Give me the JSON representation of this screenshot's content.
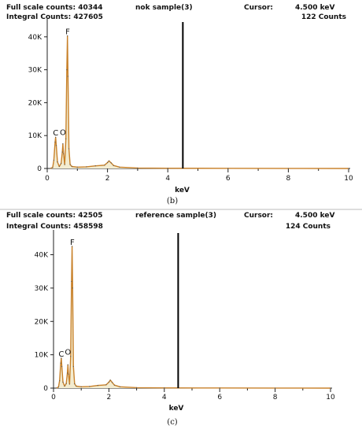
{
  "chart_data": [
    {
      "type": "line",
      "panel_label": "(b)",
      "header": {
        "full_scale": "Full scale counts: 40344",
        "sample": "nok sample(3)",
        "cursor_label": "Cursor:",
        "cursor_value": "4.500 keV",
        "integral": "Integral Counts: 427605",
        "cursor_counts": "122 Counts"
      },
      "xlabel": "keV",
      "xlim": [
        0,
        10
      ],
      "ylim": [
        0,
        44500
      ],
      "x_ticks": [
        0,
        2,
        4,
        6,
        8,
        10
      ],
      "y_ticks": [
        {
          "value": 0,
          "label": "0"
        },
        {
          "value": 10000,
          "label": "10K"
        },
        {
          "value": 20000,
          "label": "20K"
        },
        {
          "value": 30000,
          "label": "30K"
        },
        {
          "value": 40000,
          "label": "40K"
        }
      ],
      "cursor_x": 4.5,
      "peak_labels": [
        {
          "text": "C",
          "x": 0.28,
          "y": 10000
        },
        {
          "text": "O",
          "x": 0.52,
          "y": 10200
        },
        {
          "text": "F",
          "x": 0.68,
          "y": 40800
        }
      ],
      "spectrum_color": "#c8812a",
      "series": [
        {
          "x": [
            0.1,
            0.18,
            0.22,
            0.26,
            0.28,
            0.3,
            0.34,
            0.4,
            0.46,
            0.5,
            0.52,
            0.54,
            0.58,
            0.62,
            0.65,
            0.67,
            0.69,
            0.72,
            0.76,
            0.82,
            1.0,
            1.3,
            1.6,
            1.9,
            2.0,
            2.05,
            2.12,
            2.2,
            2.4,
            3.0,
            4.0,
            6.0,
            8.0,
            10.0
          ],
          "y": [
            0,
            300,
            2500,
            8000,
            9500,
            7000,
            2000,
            600,
            1500,
            5000,
            7500,
            4500,
            1200,
            9000,
            30000,
            40300,
            28000,
            6000,
            1200,
            600,
            400,
            500,
            800,
            1000,
            1800,
            2300,
            1700,
            900,
            400,
            150,
            80,
            40,
            20,
            10
          ]
        }
      ]
    },
    {
      "type": "line",
      "panel_label": "(c)",
      "header": {
        "full_scale": "Full scale counts: 42505",
        "sample": "reference sample(3)",
        "cursor_label": "Cursor:",
        "cursor_value": "4.500 keV",
        "integral": "Integral Counts: 458598",
        "cursor_counts": "124 Counts"
      },
      "xlabel": "keV",
      "xlim": [
        0,
        10
      ],
      "ylim": [
        0,
        46500
      ],
      "x_ticks": [
        0,
        2,
        4,
        6,
        8,
        10
      ],
      "y_ticks": [
        {
          "value": 0,
          "label": "0"
        },
        {
          "value": 10000,
          "label": "10K"
        },
        {
          "value": 20000,
          "label": "20K"
        },
        {
          "value": 30000,
          "label": "30K"
        },
        {
          "value": 40000,
          "label": "40K"
        }
      ],
      "cursor_x": 4.5,
      "peak_labels": [
        {
          "text": "C",
          "x": 0.28,
          "y": 9400
        },
        {
          "text": "O",
          "x": 0.52,
          "y": 10000
        },
        {
          "text": "F",
          "x": 0.68,
          "y": 43000
        }
      ],
      "spectrum_color": "#c8812a",
      "series": [
        {
          "x": [
            0.1,
            0.18,
            0.22,
            0.26,
            0.28,
            0.3,
            0.34,
            0.4,
            0.46,
            0.5,
            0.52,
            0.54,
            0.58,
            0.62,
            0.65,
            0.67,
            0.69,
            0.72,
            0.76,
            0.82,
            1.0,
            1.3,
            1.6,
            1.9,
            2.0,
            2.05,
            2.12,
            2.2,
            2.4,
            3.0,
            4.0,
            6.0,
            8.0,
            10.0
          ],
          "y": [
            0,
            300,
            2200,
            7500,
            9000,
            6500,
            1800,
            600,
            1400,
            4500,
            7000,
            4200,
            1200,
            9500,
            32000,
            42500,
            30000,
            6500,
            1300,
            600,
            400,
            500,
            800,
            1000,
            1800,
            2400,
            1700,
            900,
            400,
            150,
            80,
            40,
            20,
            10
          ]
        }
      ]
    }
  ]
}
